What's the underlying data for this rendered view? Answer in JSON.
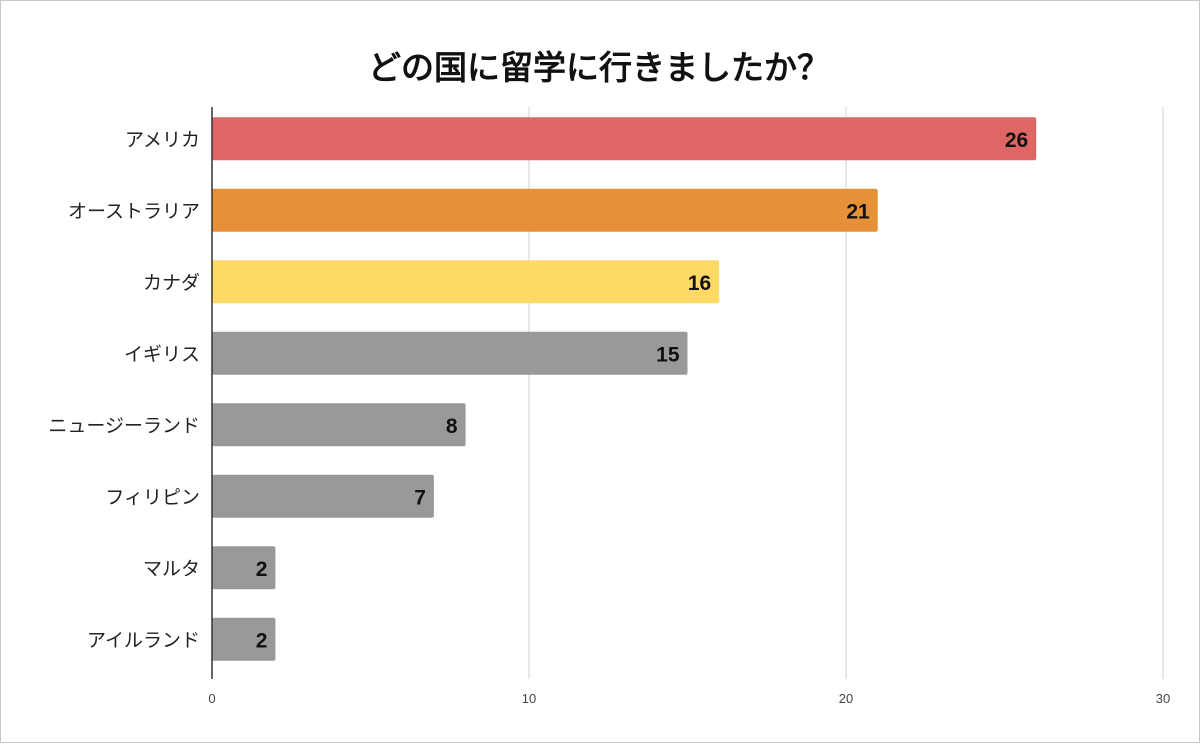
{
  "chart_data": {
    "type": "bar",
    "orientation": "horizontal",
    "title": "どの国に留学に行きましたか？",
    "categories": [
      "アメリカ",
      "オーストラリア",
      "カナダ",
      "イギリス",
      "ニュージーランド",
      "フィリピン",
      "マルタ",
      "アイルランド"
    ],
    "values": [
      26,
      21,
      16,
      15,
      8,
      7,
      2,
      2
    ],
    "colors": [
      "#e06666",
      "#e69138",
      "#ffd966",
      "#999999",
      "#999999",
      "#999999",
      "#999999",
      "#999999"
    ],
    "xlim": [
      0,
      30
    ],
    "xticks": [
      0,
      10,
      20,
      30
    ],
    "xlabel": "",
    "ylabel": "",
    "grid": true,
    "data_labels": true
  }
}
